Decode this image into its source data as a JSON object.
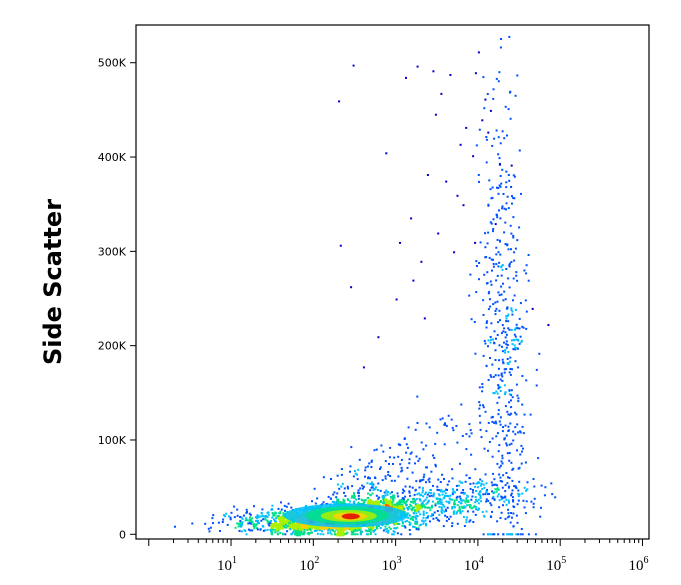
{
  "chart_data": {
    "type": "scatter",
    "title": "",
    "xlabel": "",
    "ylabel": "Side Scatter",
    "x_scale": "log",
    "x_range": [
      0.7,
      1200000
    ],
    "ylim": [
      -5000,
      540000
    ],
    "grid": false,
    "legend": "none",
    "x_tick_labels": [
      "10^1",
      "10^2",
      "10^3",
      "10^4",
      "10^5",
      "10^6"
    ],
    "x_ticks": [
      {
        "base": "10",
        "exp": "1",
        "value": 10
      },
      {
        "base": "10",
        "exp": "2",
        "value": 100
      },
      {
        "base": "10",
        "exp": "3",
        "value": 1000
      },
      {
        "base": "10",
        "exp": "4",
        "value": 10000
      },
      {
        "base": "10",
        "exp": "5",
        "value": 100000
      },
      {
        "base": "10",
        "exp": "6",
        "value": 1000000
      }
    ],
    "y_ticks": [
      {
        "label": "0",
        "value": 0
      },
      {
        "label": "100K",
        "value": 100000
      },
      {
        "label": "200K",
        "value": 200000
      },
      {
        "label": "300K",
        "value": 300000
      },
      {
        "label": "400K",
        "value": 400000
      },
      {
        "label": "500K",
        "value": 500000
      }
    ],
    "density_colors": [
      "#0000cc",
      "#0050ff",
      "#00bfff",
      "#00e08a",
      "#aaf000",
      "#ffd000",
      "#ff6000",
      "#e00000"
    ],
    "series": [
      {
        "population": "main",
        "values": [
          [
            250,
            20000,
            1.0
          ],
          [
            180,
            18000,
            0.9
          ],
          [
            350,
            22000,
            0.9
          ],
          [
            120,
            17000,
            0.8
          ],
          [
            500,
            25000,
            0.75
          ],
          [
            80,
            15000,
            0.6
          ],
          [
            700,
            28000,
            0.6
          ],
          [
            1200,
            32000,
            0.45
          ],
          [
            50,
            14000,
            0.45
          ],
          [
            2000,
            30000,
            0.35
          ],
          [
            3000,
            35000,
            0.3
          ],
          [
            5000,
            38000,
            0.25
          ],
          [
            8000,
            40000,
            0.22
          ],
          [
            12000,
            42000,
            0.2
          ],
          [
            20000,
            45000,
            0.15
          ],
          [
            30,
            13000,
            0.3
          ],
          [
            18,
            15000,
            0.2
          ],
          [
            12,
            18000,
            0.12
          ],
          [
            400,
            50000,
            0.25
          ],
          [
            800,
            65000,
            0.2
          ],
          [
            1500,
            80000,
            0.15
          ],
          [
            3000,
            95000,
            0.1
          ],
          [
            6000,
            110000,
            0.07
          ],
          [
            250,
            8000,
            0.5
          ],
          [
            1000,
            12000,
            0.3
          ]
        ]
      },
      {
        "population": "cluster",
        "values": [
          [
            20000,
            210000,
            0.25
          ],
          [
            15000,
            240000,
            0.12
          ],
          [
            25000,
            180000,
            0.12
          ],
          [
            18000,
            280000,
            0.06
          ],
          [
            30000,
            150000,
            0.06
          ]
        ]
      },
      {
        "population": "sparse-upper",
        "values": [
          [
            200,
            460000
          ],
          [
            300,
            498000
          ],
          [
            210,
            307000
          ],
          [
            280,
            263000
          ],
          [
            750,
            405000
          ],
          [
            1300,
            485000
          ],
          [
            2800,
            492000
          ],
          [
            1800,
            497000
          ],
          [
            3500,
            468000
          ],
          [
            4500,
            488000
          ],
          [
            3000,
            446000
          ],
          [
            6000,
            414000
          ],
          [
            8500,
            402000
          ],
          [
            10000,
            512000
          ],
          [
            9200,
            490000
          ],
          [
            12000,
            462000
          ],
          [
            14000,
            450000
          ],
          [
            11000,
            440000
          ],
          [
            13000,
            427000
          ],
          [
            18000,
            393000
          ],
          [
            25000,
            392000
          ],
          [
            7000,
            432000
          ],
          [
            5500,
            360000
          ],
          [
            4000,
            375000
          ],
          [
            2400,
            382000
          ],
          [
            1500,
            336000
          ],
          [
            1100,
            310000
          ],
          [
            2000,
            290000
          ],
          [
            3200,
            320000
          ],
          [
            6500,
            350000
          ],
          [
            9000,
            310000
          ],
          [
            16000,
            330000
          ],
          [
            400,
            178000
          ],
          [
            600,
            210000
          ],
          [
            1000,
            250000
          ],
          [
            1600,
            270000
          ],
          [
            2200,
            230000
          ],
          [
            5000,
            300000
          ],
          [
            70000,
            223000
          ],
          [
            45000,
            240000
          ]
        ]
      }
    ]
  }
}
